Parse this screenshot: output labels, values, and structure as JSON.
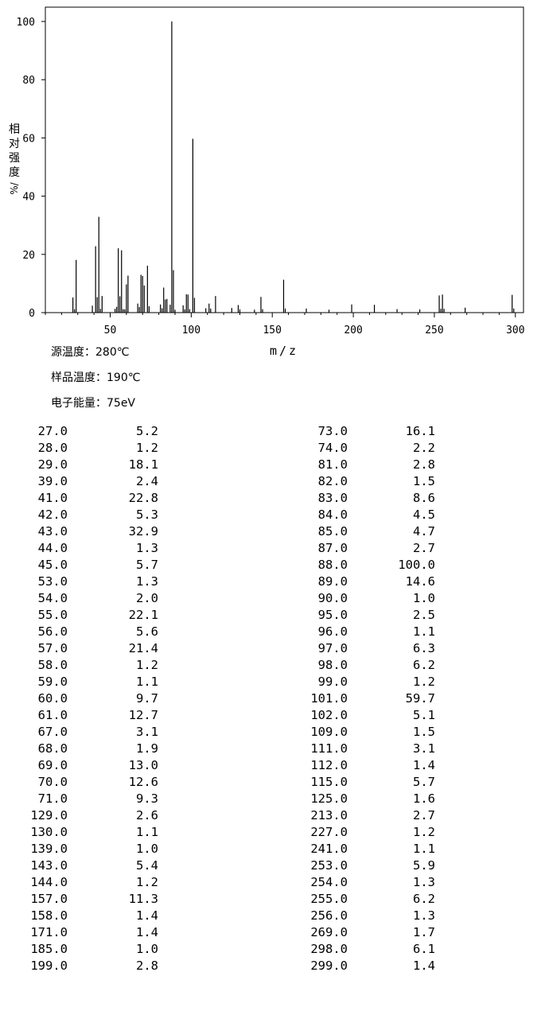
{
  "chart_data": {
    "type": "bar",
    "xlabel": "m/z",
    "ylabel": [
      "相",
      "对",
      "强",
      "度",
      "%/"
    ],
    "xlim": [
      10,
      305
    ],
    "ylim": [
      0,
      100
    ],
    "x_ticks": [
      "50",
      "100",
      "150",
      "200",
      "250",
      "300"
    ],
    "y_ticks": [
      "0",
      "20",
      "40",
      "60",
      "80",
      "100"
    ],
    "peaks": [
      {
        "mz": 27.0,
        "intensity": 5.2
      },
      {
        "mz": 28.0,
        "intensity": 1.2
      },
      {
        "mz": 29.0,
        "intensity": 18.1
      },
      {
        "mz": 39.0,
        "intensity": 2.4
      },
      {
        "mz": 41.0,
        "intensity": 22.8
      },
      {
        "mz": 42.0,
        "intensity": 5.3
      },
      {
        "mz": 43.0,
        "intensity": 32.9
      },
      {
        "mz": 44.0,
        "intensity": 1.3
      },
      {
        "mz": 45.0,
        "intensity": 5.7
      },
      {
        "mz": 53.0,
        "intensity": 1.3
      },
      {
        "mz": 54.0,
        "intensity": 2.0
      },
      {
        "mz": 55.0,
        "intensity": 22.1
      },
      {
        "mz": 56.0,
        "intensity": 5.6
      },
      {
        "mz": 57.0,
        "intensity": 21.4
      },
      {
        "mz": 58.0,
        "intensity": 1.2
      },
      {
        "mz": 59.0,
        "intensity": 1.1
      },
      {
        "mz": 60.0,
        "intensity": 9.7
      },
      {
        "mz": 61.0,
        "intensity": 12.7
      },
      {
        "mz": 67.0,
        "intensity": 3.1
      },
      {
        "mz": 68.0,
        "intensity": 1.9
      },
      {
        "mz": 69.0,
        "intensity": 13.0
      },
      {
        "mz": 70.0,
        "intensity": 12.6
      },
      {
        "mz": 71.0,
        "intensity": 9.3
      },
      {
        "mz": 73.0,
        "intensity": 16.1
      },
      {
        "mz": 74.0,
        "intensity": 2.2
      },
      {
        "mz": 81.0,
        "intensity": 2.8
      },
      {
        "mz": 82.0,
        "intensity": 1.5
      },
      {
        "mz": 83.0,
        "intensity": 8.6
      },
      {
        "mz": 84.0,
        "intensity": 4.5
      },
      {
        "mz": 85.0,
        "intensity": 4.7
      },
      {
        "mz": 87.0,
        "intensity": 2.7
      },
      {
        "mz": 88.0,
        "intensity": 100.0
      },
      {
        "mz": 89.0,
        "intensity": 14.6
      },
      {
        "mz": 90.0,
        "intensity": 1.0
      },
      {
        "mz": 95.0,
        "intensity": 2.5
      },
      {
        "mz": 96.0,
        "intensity": 1.1
      },
      {
        "mz": 97.0,
        "intensity": 6.3
      },
      {
        "mz": 98.0,
        "intensity": 6.2
      },
      {
        "mz": 99.0,
        "intensity": 1.2
      },
      {
        "mz": 101.0,
        "intensity": 59.7
      },
      {
        "mz": 102.0,
        "intensity": 5.1
      },
      {
        "mz": 109.0,
        "intensity": 1.5
      },
      {
        "mz": 111.0,
        "intensity": 3.1
      },
      {
        "mz": 112.0,
        "intensity": 1.4
      },
      {
        "mz": 115.0,
        "intensity": 5.7
      },
      {
        "mz": 125.0,
        "intensity": 1.6
      },
      {
        "mz": 129.0,
        "intensity": 2.6
      },
      {
        "mz": 130.0,
        "intensity": 1.1
      },
      {
        "mz": 139.0,
        "intensity": 1.0
      },
      {
        "mz": 143.0,
        "intensity": 5.4
      },
      {
        "mz": 144.0,
        "intensity": 1.2
      },
      {
        "mz": 157.0,
        "intensity": 11.3
      },
      {
        "mz": 158.0,
        "intensity": 1.4
      },
      {
        "mz": 171.0,
        "intensity": 1.4
      },
      {
        "mz": 185.0,
        "intensity": 1.0
      },
      {
        "mz": 199.0,
        "intensity": 2.8
      },
      {
        "mz": 213.0,
        "intensity": 2.7
      },
      {
        "mz": 227.0,
        "intensity": 1.2
      },
      {
        "mz": 241.0,
        "intensity": 1.1
      },
      {
        "mz": 253.0,
        "intensity": 5.9
      },
      {
        "mz": 254.0,
        "intensity": 1.3
      },
      {
        "mz": 255.0,
        "intensity": 6.2
      },
      {
        "mz": 256.0,
        "intensity": 1.3
      },
      {
        "mz": 269.0,
        "intensity": 1.7
      },
      {
        "mz": 298.0,
        "intensity": 6.1
      },
      {
        "mz": 299.0,
        "intensity": 1.4
      }
    ]
  },
  "meta": {
    "source_temp": "源温度：280℃",
    "sample_temp": "样品温度：190℃",
    "electron_energy": "电子能量：75eV"
  },
  "table": {
    "left": [
      [
        "27.0",
        "5.2"
      ],
      [
        "28.0",
        "1.2"
      ],
      [
        "29.0",
        "18.1"
      ],
      [
        "39.0",
        "2.4"
      ],
      [
        "41.0",
        "22.8"
      ],
      [
        "42.0",
        "5.3"
      ],
      [
        "43.0",
        "32.9"
      ],
      [
        "44.0",
        "1.3"
      ],
      [
        "45.0",
        "5.7"
      ],
      [
        "53.0",
        "1.3"
      ],
      [
        "54.0",
        "2.0"
      ],
      [
        "55.0",
        "22.1"
      ],
      [
        "56.0",
        "5.6"
      ],
      [
        "57.0",
        "21.4"
      ],
      [
        "58.0",
        "1.2"
      ],
      [
        "59.0",
        "1.1"
      ],
      [
        "60.0",
        "9.7"
      ],
      [
        "61.0",
        "12.7"
      ],
      [
        "67.0",
        "3.1"
      ],
      [
        "68.0",
        "1.9"
      ],
      [
        "69.0",
        "13.0"
      ],
      [
        "70.0",
        "12.6"
      ],
      [
        "71.0",
        "9.3"
      ],
      [
        "129.0",
        "2.6"
      ],
      [
        "130.0",
        "1.1"
      ],
      [
        "139.0",
        "1.0"
      ],
      [
        "143.0",
        "5.4"
      ],
      [
        "144.0",
        "1.2"
      ],
      [
        "157.0",
        "11.3"
      ],
      [
        "158.0",
        "1.4"
      ],
      [
        "171.0",
        "1.4"
      ],
      [
        "185.0",
        "1.0"
      ],
      [
        "199.0",
        "2.8"
      ]
    ],
    "right": [
      [
        "73.0",
        "16.1"
      ],
      [
        "74.0",
        "2.2"
      ],
      [
        "81.0",
        "2.8"
      ],
      [
        "82.0",
        "1.5"
      ],
      [
        "83.0",
        "8.6"
      ],
      [
        "84.0",
        "4.5"
      ],
      [
        "85.0",
        "4.7"
      ],
      [
        "87.0",
        "2.7"
      ],
      [
        "88.0",
        "100.0"
      ],
      [
        "89.0",
        "14.6"
      ],
      [
        "90.0",
        "1.0"
      ],
      [
        "95.0",
        "2.5"
      ],
      [
        "96.0",
        "1.1"
      ],
      [
        "97.0",
        "6.3"
      ],
      [
        "98.0",
        "6.2"
      ],
      [
        "99.0",
        "1.2"
      ],
      [
        "101.0",
        "59.7"
      ],
      [
        "102.0",
        "5.1"
      ],
      [
        "109.0",
        "1.5"
      ],
      [
        "111.0",
        "3.1"
      ],
      [
        "112.0",
        "1.4"
      ],
      [
        "115.0",
        "5.7"
      ],
      [
        "125.0",
        "1.6"
      ],
      [
        "213.0",
        "2.7"
      ],
      [
        "227.0",
        "1.2"
      ],
      [
        "241.0",
        "1.1"
      ],
      [
        "253.0",
        "5.9"
      ],
      [
        "254.0",
        "1.3"
      ],
      [
        "255.0",
        "6.2"
      ],
      [
        "256.0",
        "1.3"
      ],
      [
        "269.0",
        "1.7"
      ],
      [
        "298.0",
        "6.1"
      ],
      [
        "299.0",
        "1.4"
      ]
    ]
  }
}
